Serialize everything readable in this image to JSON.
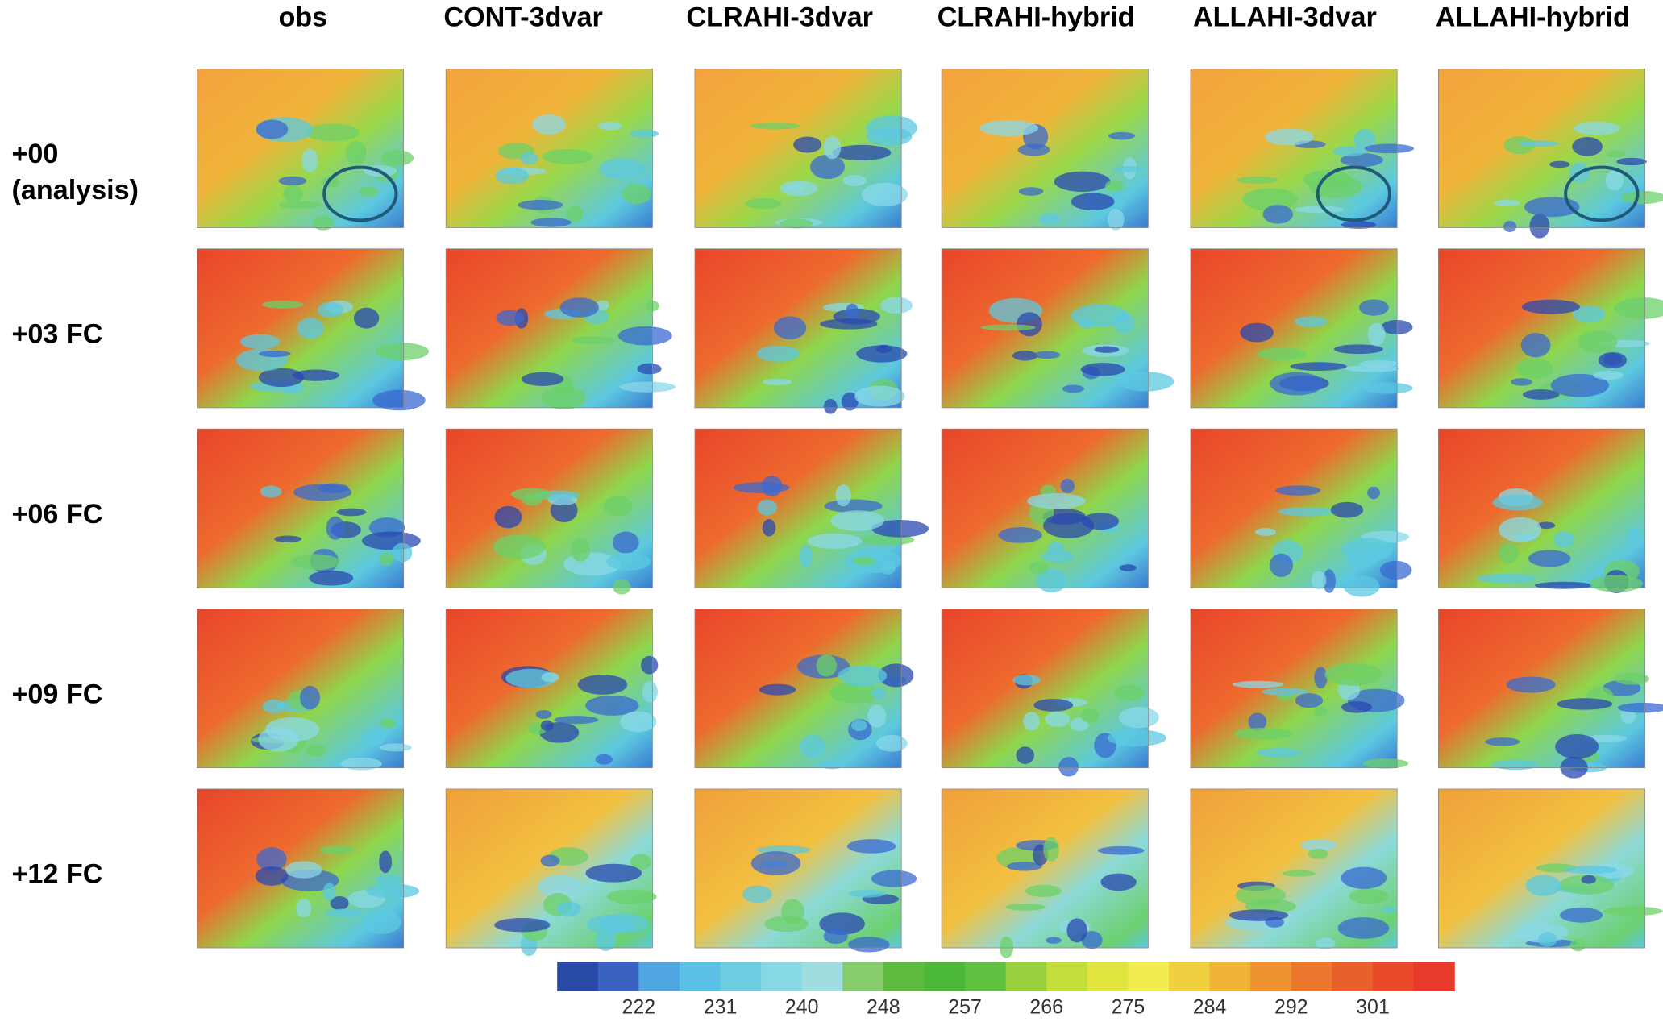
{
  "columns": [
    "obs",
    "CONT-3dvar",
    "CLRAHI-3dvar",
    "CLRAHI-hybrid",
    "ALLAHI-3dvar",
    "ALLAHI-hybrid"
  ],
  "rows": [
    [
      "+00",
      "(analysis)"
    ],
    [
      "+03 FC"
    ],
    [
      "+06 FC"
    ],
    [
      "+09 FC"
    ],
    [
      "+12 FC"
    ]
  ],
  "colorbar": {
    "ticks": [
      222,
      231,
      240,
      248,
      257,
      266,
      275,
      284,
      292,
      301
    ]
  }
}
